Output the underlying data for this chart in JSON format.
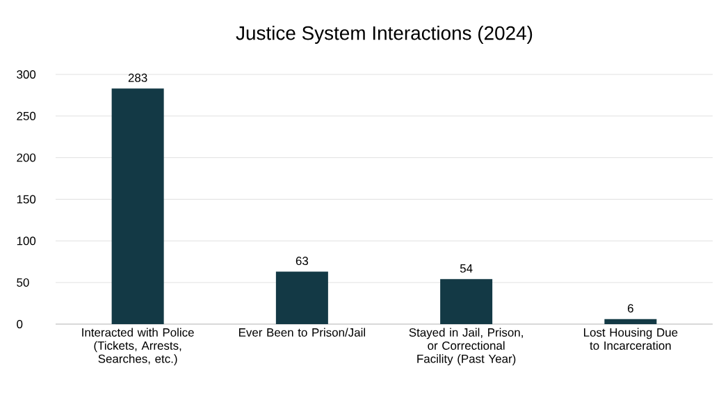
{
  "chart_data": {
    "type": "bar",
    "title": "Justice System Interactions (2024)",
    "categories": [
      "Interacted with Police (Tickets, Arrests, Searches, etc.)",
      "Ever Been to Prison/Jail",
      "Stayed in Jail, Prison, or Correctional Facility (Past Year)",
      "Lost Housing Due to Incarceration"
    ],
    "values": [
      283,
      63,
      54,
      6
    ],
    "color": "#133945",
    "ylim": [
      0,
      300
    ],
    "yticks": [
      0,
      50,
      100,
      150,
      200,
      250,
      300
    ],
    "grid": "y",
    "data_labels": true
  }
}
